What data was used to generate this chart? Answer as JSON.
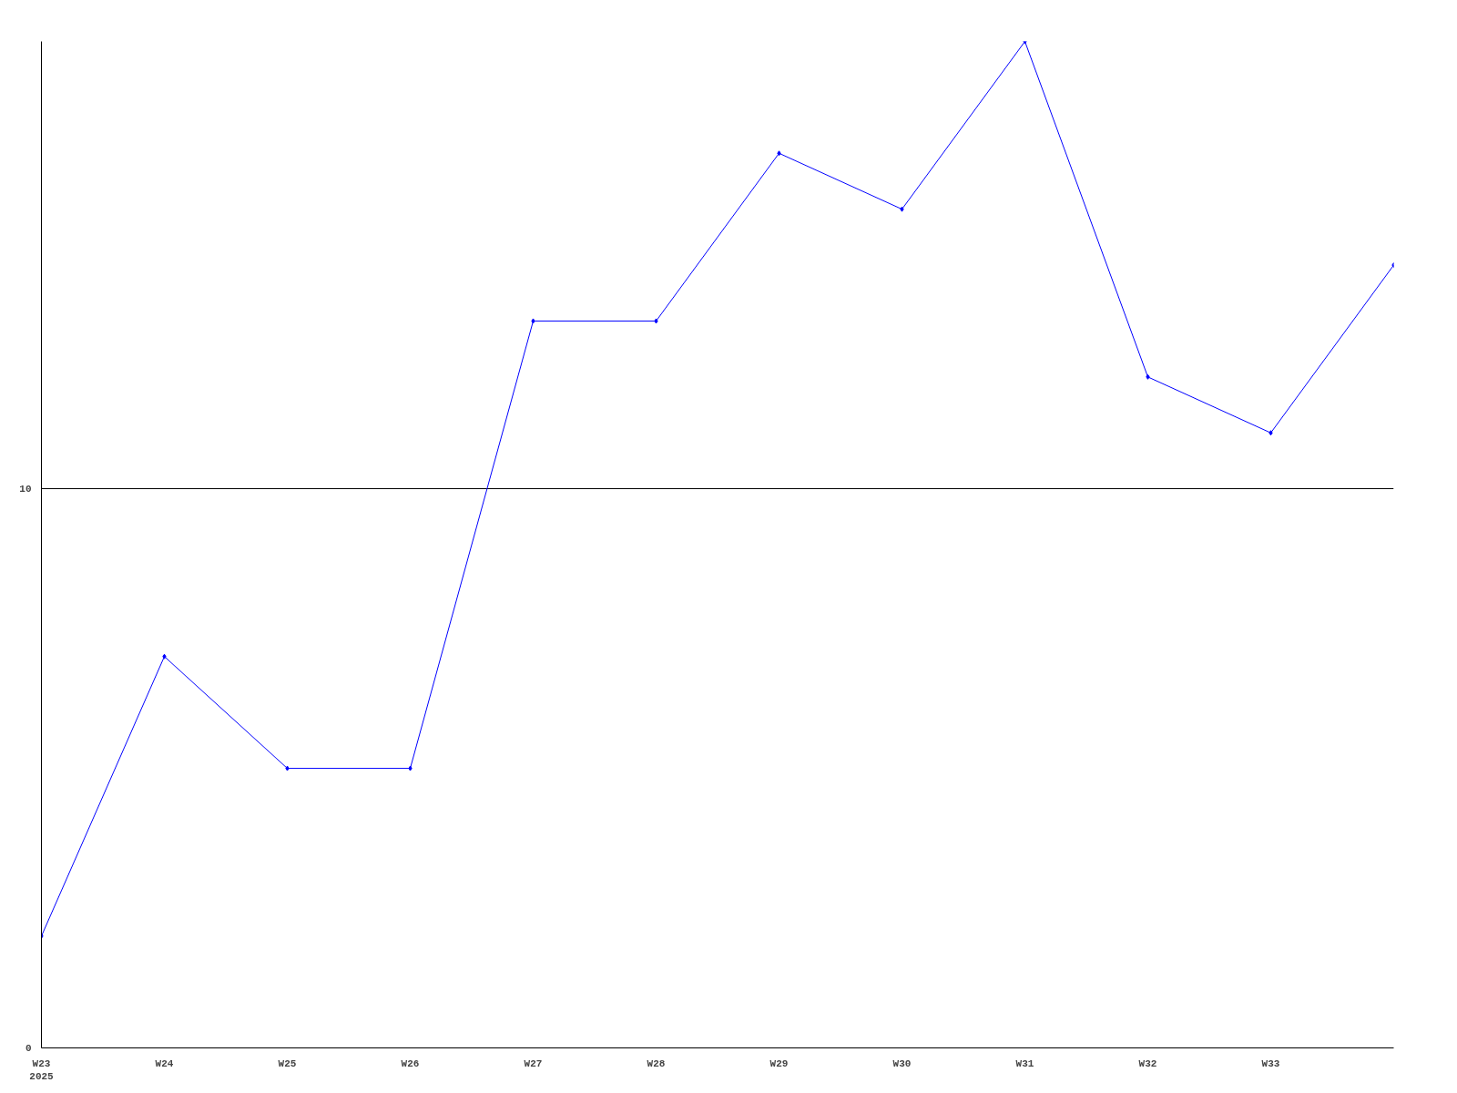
{
  "chart_data": {
    "type": "line",
    "categories": [
      "W23\n2025",
      "W24",
      "W25",
      "W26",
      "W27",
      "W28",
      "W29",
      "W30",
      "W31",
      "W32",
      "W33",
      null
    ],
    "series": [
      {
        "color": "#0000ff",
        "values": [
          2,
          7,
          5,
          5,
          13,
          13,
          16,
          15,
          18,
          12,
          11,
          14
        ]
      }
    ],
    "ylim": [
      0,
      18
    ],
    "yticks": [
      0,
      10
    ],
    "grid": "y",
    "marker": "diamond",
    "line_style": "solid"
  }
}
